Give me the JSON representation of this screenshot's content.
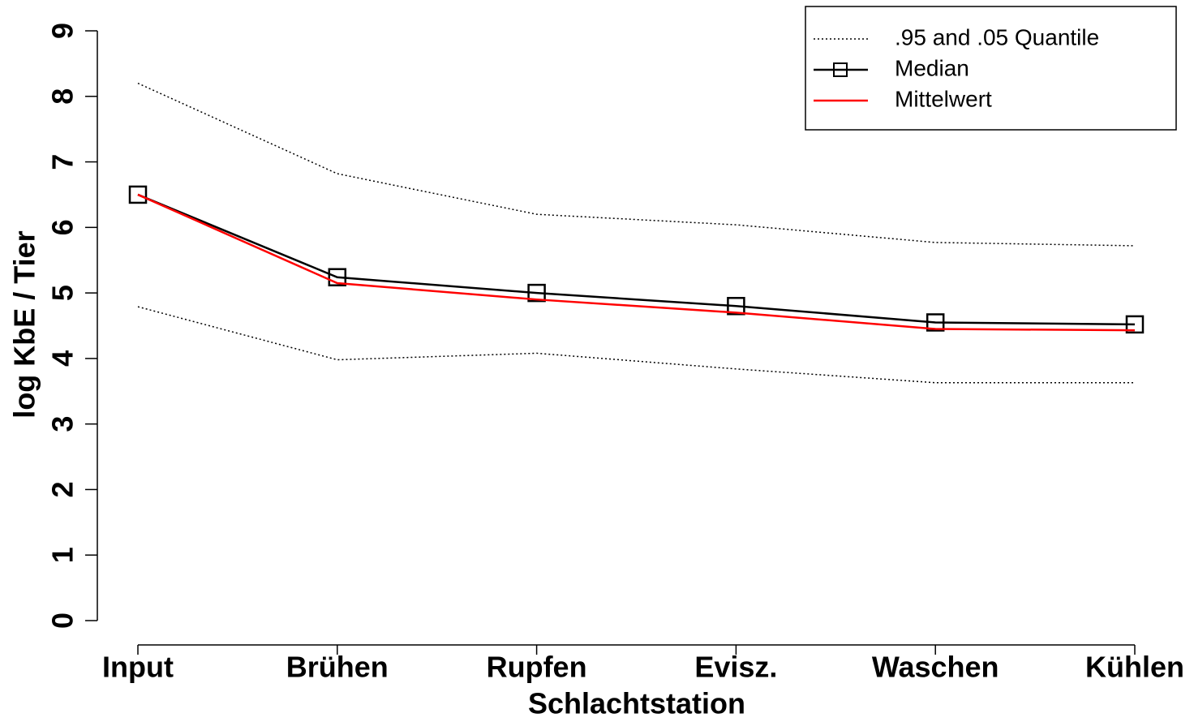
{
  "chart_data": {
    "type": "line",
    "xlabel": "Schlachtstation",
    "ylabel": "log KbE / Tier",
    "categories": [
      "Input",
      "Brühen",
      "Rupfen",
      "Evisz.",
      "Waschen",
      "Kühlen"
    ],
    "ylim": [
      0,
      9
    ],
    "yticks": [
      0,
      1,
      2,
      3,
      4,
      5,
      6,
      7,
      8,
      9
    ],
    "legend": "top-right",
    "series": [
      {
        "name": ".95 and .05 Quantile",
        "color": "#000000",
        "style": "dotted",
        "upper": [
          8.2,
          6.82,
          6.2,
          6.04,
          5.77,
          5.72
        ],
        "lower": [
          4.79,
          3.98,
          4.08,
          3.84,
          3.63,
          3.63
        ]
      },
      {
        "name": "Median",
        "color": "#000000",
        "style": "solid",
        "marker": "square",
        "values": [
          6.5,
          5.24,
          5.0,
          4.8,
          4.55,
          4.52
        ]
      },
      {
        "name": "Mittelwert",
        "color": "#ff0000",
        "style": "solid",
        "values": [
          6.5,
          5.15,
          4.9,
          4.7,
          4.45,
          4.43
        ]
      }
    ]
  }
}
